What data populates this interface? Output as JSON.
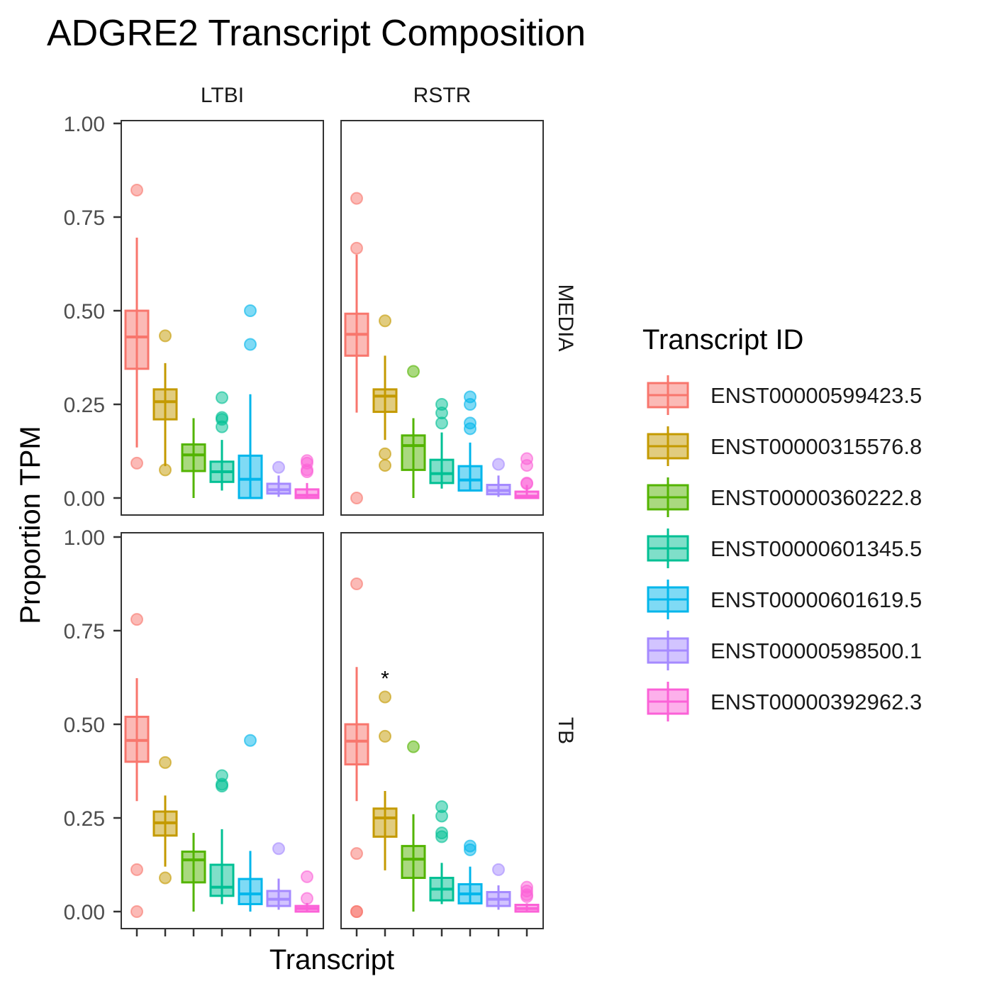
{
  "chart_data": {
    "type": "boxplot",
    "title": "ADGRE2 Transcript Composition",
    "xlabel": "Transcript",
    "ylabel": "Proportion TPM",
    "ylim": [
      0,
      1
    ],
    "yticks": [
      "0.00",
      "0.25",
      "0.50",
      "0.75",
      "1.00"
    ],
    "facet_columns": [
      "LTBI",
      "RSTR"
    ],
    "facet_rows": [
      "MEDIA",
      "TB"
    ],
    "legend": {
      "title": "Transcript ID",
      "position": "right",
      "entries": [
        {
          "label": "ENST00000599423.5",
          "color": "#F8766D"
        },
        {
          "label": "ENST00000315576.8",
          "color": "#C49A00"
        },
        {
          "label": "ENST00000360222.8",
          "color": "#53B400"
        },
        {
          "label": "ENST00000601345.5",
          "color": "#00C094"
        },
        {
          "label": "ENST00000601619.5",
          "color": "#00B6EB"
        },
        {
          "label": "ENST00000598500.1",
          "color": "#A58AFF"
        },
        {
          "label": "ENST00000392962.3",
          "color": "#FB61D7"
        }
      ]
    },
    "panels": [
      {
        "col": "LTBI",
        "row": "MEDIA",
        "boxes": [
          {
            "low": 0.135,
            "q1": 0.345,
            "median": 0.43,
            "q3": 0.5,
            "high": 0.695,
            "outliers": [
              0.822,
              0.093
            ]
          },
          {
            "low": 0.085,
            "q1": 0.21,
            "median": 0.257,
            "q3": 0.29,
            "high": 0.36,
            "outliers": [
              0.433,
              0.075
            ]
          },
          {
            "low": 0.0,
            "q1": 0.072,
            "median": 0.115,
            "q3": 0.143,
            "high": 0.213,
            "outliers": []
          },
          {
            "low": 0.02,
            "q1": 0.043,
            "median": 0.07,
            "q3": 0.097,
            "high": 0.155,
            "outliers": [
              0.268,
              0.215,
              0.21,
              0.19
            ]
          },
          {
            "low": 0.0,
            "q1": 0.0,
            "median": 0.05,
            "q3": 0.113,
            "high": 0.277,
            "outliers": [
              0.5,
              0.41
            ]
          },
          {
            "low": 0.003,
            "q1": 0.012,
            "median": 0.022,
            "q3": 0.038,
            "high": 0.06,
            "outliers": [
              0.082
            ]
          },
          {
            "low": 0.0,
            "q1": 0.0,
            "median": 0.007,
            "q3": 0.023,
            "high": 0.04,
            "outliers": [
              0.1,
              0.093,
              0.075,
              0.07
            ]
          }
        ]
      },
      {
        "col": "RSTR",
        "row": "MEDIA",
        "boxes": [
          {
            "low": 0.228,
            "q1": 0.38,
            "median": 0.437,
            "q3": 0.492,
            "high": 0.65,
            "outliers": [
              0.8,
              0.667,
              0.0
            ]
          },
          {
            "low": 0.155,
            "q1": 0.23,
            "median": 0.272,
            "q3": 0.29,
            "high": 0.38,
            "outliers": [
              0.473,
              0.118,
              0.087
            ]
          },
          {
            "low": 0.0,
            "q1": 0.075,
            "median": 0.14,
            "q3": 0.167,
            "high": 0.213,
            "outliers": [
              0.338
            ]
          },
          {
            "low": 0.025,
            "q1": 0.04,
            "median": 0.065,
            "q3": 0.102,
            "high": 0.175,
            "outliers": [
              0.25,
              0.227,
              0.2
            ]
          },
          {
            "low": 0.018,
            "q1": 0.02,
            "median": 0.048,
            "q3": 0.085,
            "high": 0.148,
            "outliers": [
              0.27,
              0.25,
              0.2,
              0.185
            ]
          },
          {
            "low": 0.003,
            "q1": 0.01,
            "median": 0.02,
            "q3": 0.035,
            "high": 0.06,
            "outliers": [
              0.09
            ]
          },
          {
            "low": 0.0,
            "q1": 0.0,
            "median": 0.005,
            "q3": 0.017,
            "high": 0.035,
            "outliers": [
              0.105,
              0.087,
              0.04,
              0.038
            ]
          }
        ]
      },
      {
        "col": "LTBI",
        "row": "TB",
        "boxes": [
          {
            "low": 0.295,
            "q1": 0.4,
            "median": 0.457,
            "q3": 0.52,
            "high": 0.623,
            "outliers": [
              0.78,
              0.112,
              0.0
            ]
          },
          {
            "low": 0.12,
            "q1": 0.203,
            "median": 0.237,
            "q3": 0.267,
            "high": 0.31,
            "outliers": [
              0.398,
              0.09
            ]
          },
          {
            "low": 0.0,
            "q1": 0.078,
            "median": 0.138,
            "q3": 0.16,
            "high": 0.21,
            "outliers": []
          },
          {
            "low": 0.02,
            "q1": 0.042,
            "median": 0.065,
            "q3": 0.125,
            "high": 0.22,
            "outliers": [
              0.363,
              0.34,
              0.335
            ]
          },
          {
            "low": 0.0,
            "q1": 0.02,
            "median": 0.047,
            "q3": 0.087,
            "high": 0.162,
            "outliers": [
              0.457
            ]
          },
          {
            "low": 0.005,
            "q1": 0.015,
            "median": 0.033,
            "q3": 0.055,
            "high": 0.088,
            "outliers": [
              0.168
            ]
          },
          {
            "low": 0.0,
            "q1": 0.0,
            "median": 0.008,
            "q3": 0.015,
            "high": 0.023,
            "outliers": [
              0.093,
              0.035
            ]
          }
        ]
      },
      {
        "col": "RSTR",
        "row": "TB",
        "boxes": [
          {
            "low": 0.295,
            "q1": 0.393,
            "median": 0.455,
            "q3": 0.5,
            "high": 0.653,
            "outliers": [
              0.875,
              0.155,
              0.0,
              0.0
            ]
          },
          {
            "low": 0.11,
            "q1": 0.2,
            "median": 0.25,
            "q3": 0.275,
            "high": 0.322,
            "outliers": [
              0.573,
              0.468
            ]
          },
          {
            "low": 0.0,
            "q1": 0.09,
            "median": 0.14,
            "q3": 0.175,
            "high": 0.26,
            "outliers": [
              0.44
            ]
          },
          {
            "low": 0.02,
            "q1": 0.03,
            "median": 0.06,
            "q3": 0.09,
            "high": 0.13,
            "outliers": [
              0.28,
              0.255,
              0.21,
              0.2
            ]
          },
          {
            "low": 0.02,
            "q1": 0.022,
            "median": 0.047,
            "q3": 0.073,
            "high": 0.12,
            "outliers": [
              0.175,
              0.165
            ]
          },
          {
            "low": 0.005,
            "q1": 0.015,
            "median": 0.033,
            "q3": 0.052,
            "high": 0.07,
            "outliers": [
              0.112
            ]
          },
          {
            "low": 0.0,
            "q1": 0.0,
            "median": 0.008,
            "q3": 0.018,
            "high": 0.022,
            "outliers": [
              0.065,
              0.055,
              0.045,
              0.04
            ]
          }
        ]
      }
    ],
    "annotations": [
      {
        "panel": "RSTR-TB",
        "category_index": 1,
        "y": 0.63,
        "text": "*"
      }
    ]
  }
}
